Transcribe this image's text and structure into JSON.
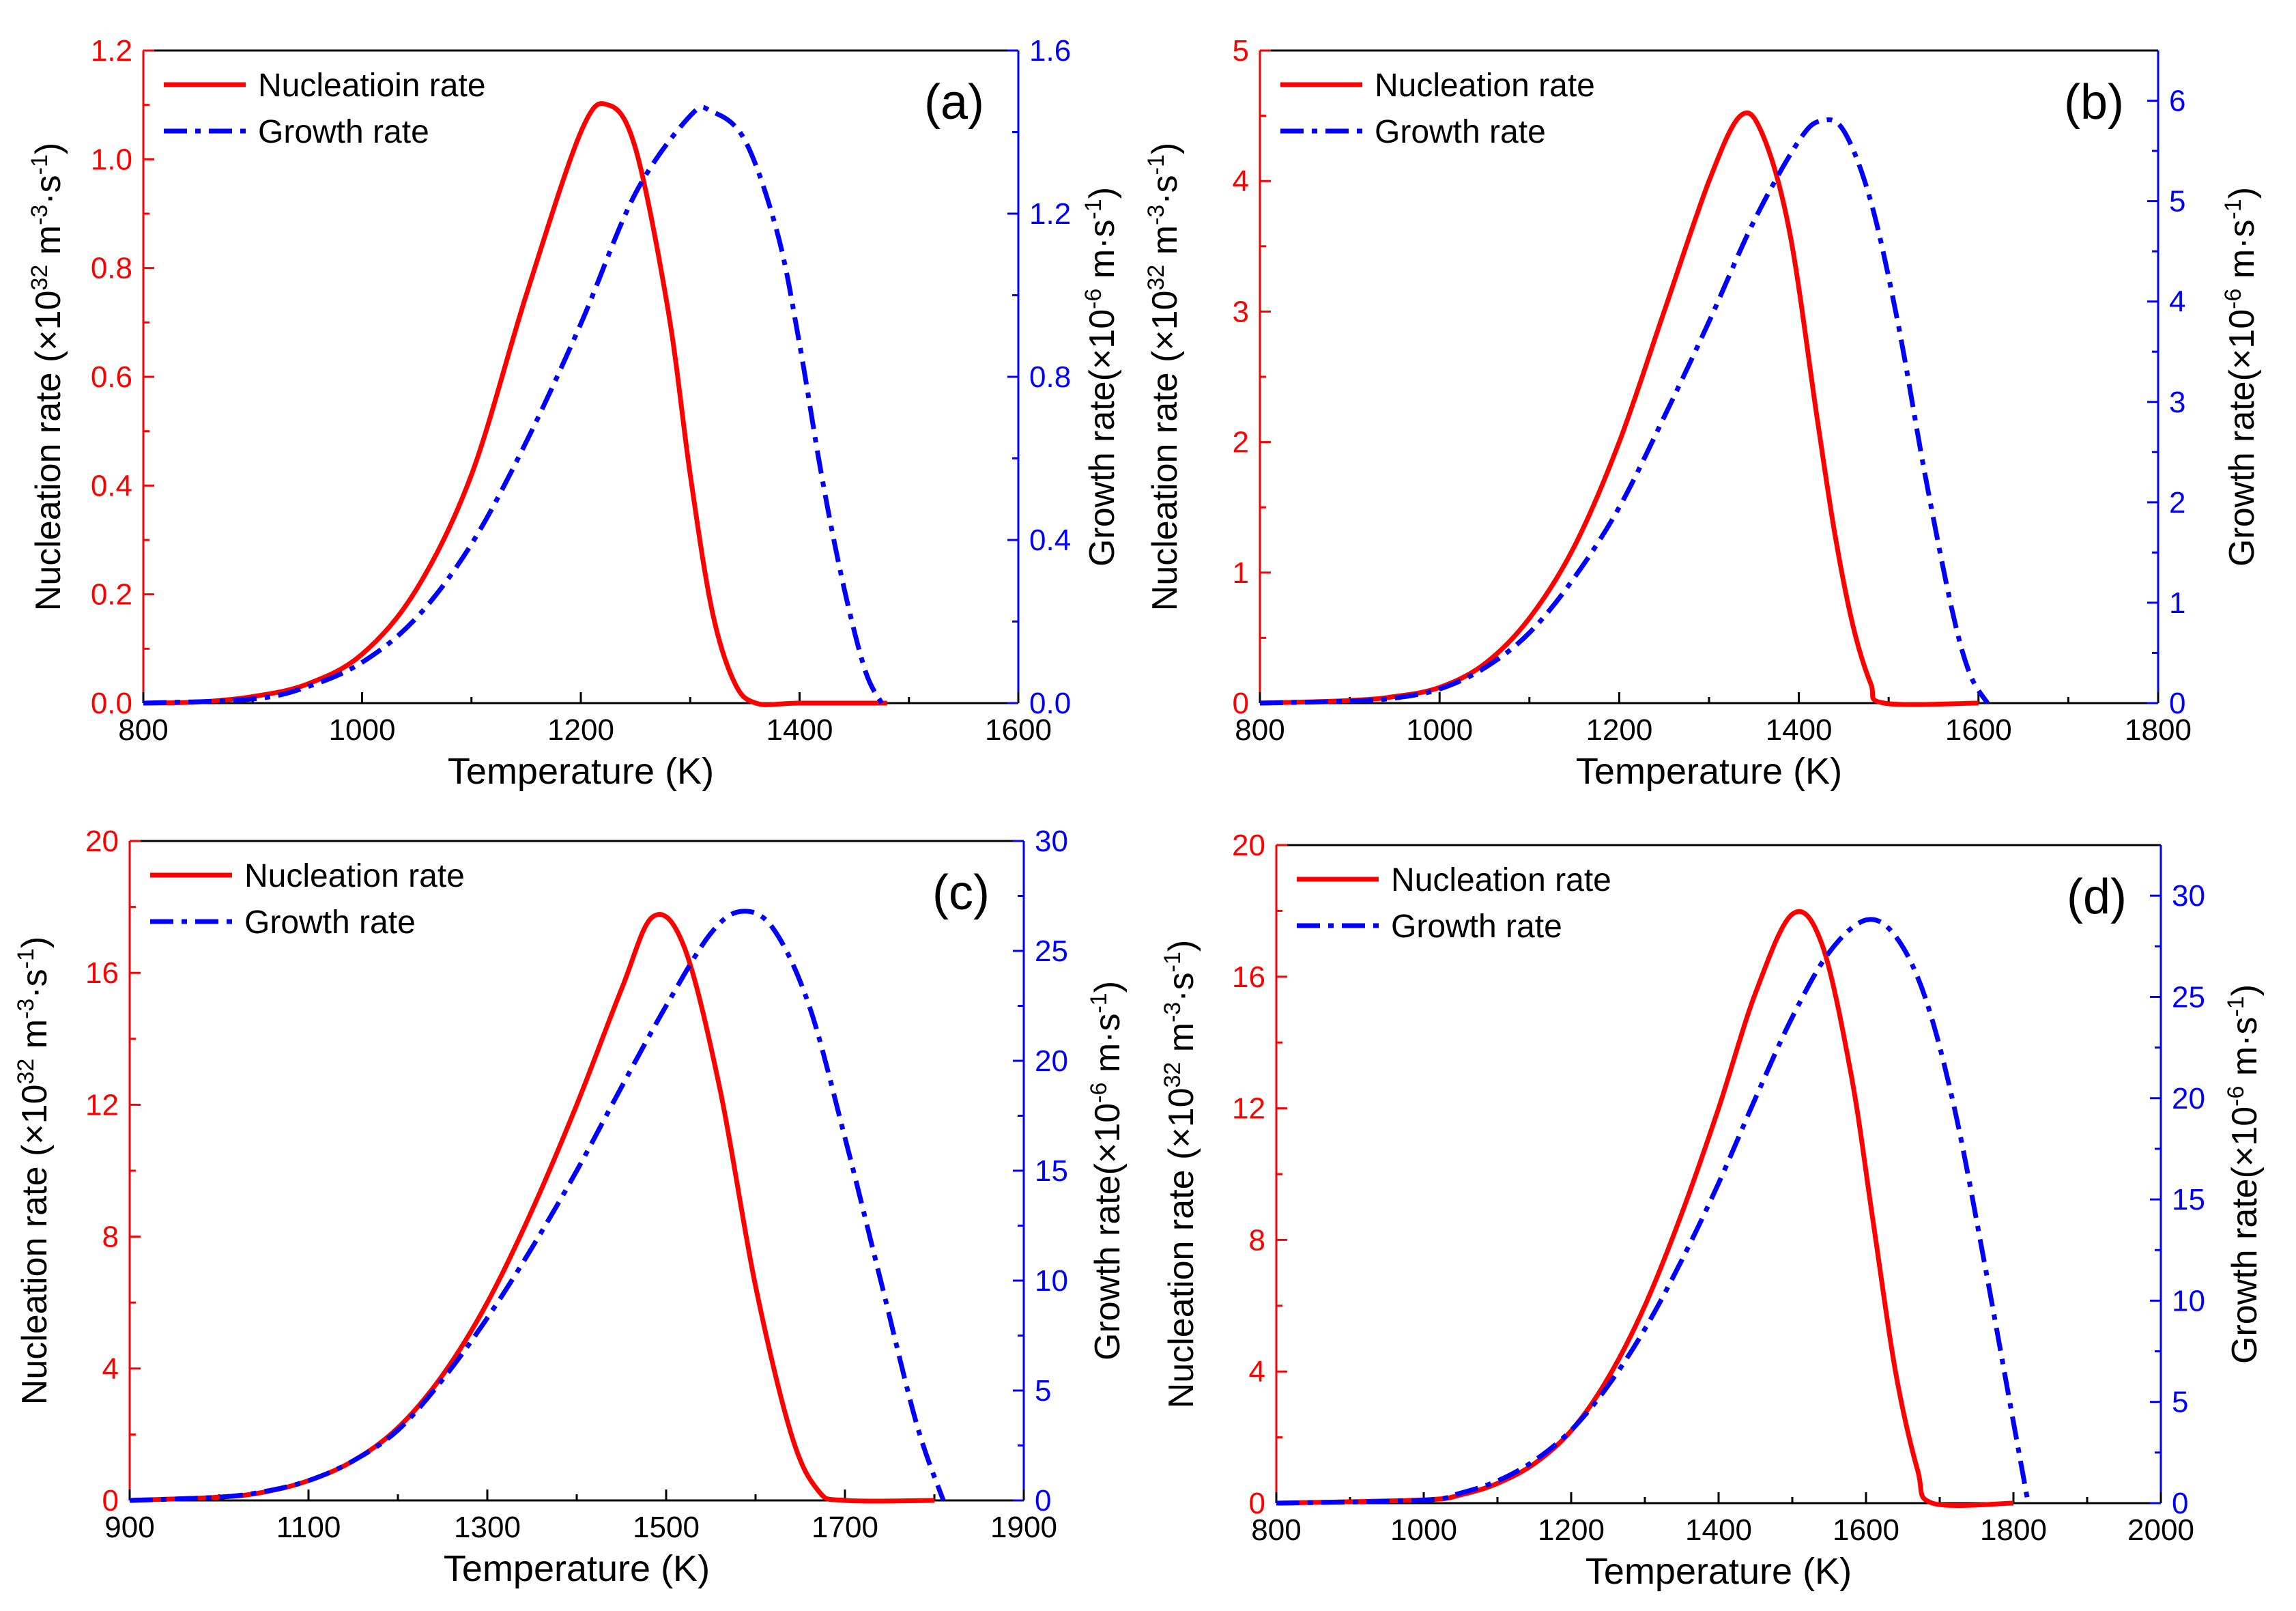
{
  "colors": {
    "nucleation": "#ff0000",
    "growth": "#0000ff",
    "axis": "#000000"
  },
  "chart_data": [
    {
      "type": "line",
      "panel_label": "(a)",
      "xlabel": "Temperature (K)",
      "ylabel_left": {
        "main": "Nucleation rate (×10",
        "sup": "32",
        "mid": " m",
        "sup2": "-3",
        "mid2": "·s",
        "sup3": "-1",
        "end": ")"
      },
      "ylabel_right": {
        "main": "Growth rate(×10",
        "sup": "-6",
        "mid": " m·s",
        "sup2": "-1",
        "end": ")"
      },
      "xlim": [
        800,
        1600
      ],
      "xticks": [
        800,
        1000,
        1200,
        1400,
        1600
      ],
      "xtick_labels": [
        "800",
        "1000",
        "1200",
        "1400",
        "1600"
      ],
      "ylim_left": [
        0,
        1.2
      ],
      "yticks_left": [
        0,
        0.2,
        0.4,
        0.6,
        0.8,
        1.0,
        1.2
      ],
      "ytick_labels_left": [
        "0.0",
        "0.2",
        "0.4",
        "0.6",
        "0.8",
        "1.0",
        "1.2"
      ],
      "ylim_right": [
        0,
        1.6
      ],
      "yticks_right": [
        0,
        0.4,
        0.8,
        1.2,
        1.6
      ],
      "ytick_labels_right": [
        "0.0",
        "0.4",
        "0.8",
        "1.2",
        "1.6"
      ],
      "legend": [
        "Nucleatioin rate",
        "Growth rate"
      ],
      "legend_position": "top-left",
      "series": [
        {
          "name": "Nucleatioin rate",
          "axis": "left",
          "x": [
            800,
            850,
            900,
            950,
            1000,
            1050,
            1100,
            1150,
            1200,
            1225,
            1250,
            1280,
            1300,
            1320,
            1340,
            1360,
            1400,
            1480
          ],
          "y": [
            0.0,
            0.002,
            0.012,
            0.035,
            0.09,
            0.21,
            0.42,
            0.75,
            1.05,
            1.1,
            1.02,
            0.72,
            0.42,
            0.17,
            0.04,
            0.0,
            0.0,
            0.0
          ]
        },
        {
          "name": "Growth rate",
          "axis": "right",
          "x": [
            800,
            900,
            950,
            1000,
            1050,
            1100,
            1150,
            1200,
            1250,
            1300,
            1320,
            1350,
            1380,
            1400,
            1420,
            1440,
            1460,
            1475
          ],
          "y": [
            0.0,
            0.01,
            0.04,
            0.1,
            0.21,
            0.39,
            0.64,
            0.93,
            1.25,
            1.44,
            1.45,
            1.38,
            1.15,
            0.88,
            0.56,
            0.29,
            0.08,
            0.0
          ]
        }
      ]
    },
    {
      "type": "line",
      "panel_label": "(b)",
      "xlabel": "Temperature (K)",
      "ylabel_left": {
        "main": "Nucleation rate (×10",
        "sup": "32",
        "mid": " m",
        "sup2": "-3",
        "mid2": "·s",
        "sup3": "-1",
        "end": ")"
      },
      "ylabel_right": {
        "main": "Growth rate(×10",
        "sup": "-6",
        "mid": " m·s",
        "sup2": "-1",
        "end": ")"
      },
      "xlim": [
        800,
        1800
      ],
      "xticks": [
        800,
        1000,
        1200,
        1400,
        1600,
        1800
      ],
      "xtick_labels": [
        "800",
        "1000",
        "1200",
        "1400",
        "1600",
        "1800"
      ],
      "ylim_left": [
        0,
        5
      ],
      "yticks_left": [
        0,
        1,
        2,
        3,
        4,
        5
      ],
      "ytick_labels_left": [
        "0",
        "1",
        "2",
        "3",
        "4",
        "5"
      ],
      "ylim_right": [
        0,
        6.5
      ],
      "yticks_right": [
        0,
        1,
        2,
        3,
        4,
        5,
        6
      ],
      "ytick_labels_right": [
        "0",
        "1",
        "2",
        "3",
        "4",
        "5",
        "6"
      ],
      "legend": [
        "Nucleation rate",
        "Growth rate"
      ],
      "legend_position": "top-left",
      "series": [
        {
          "name": "Nucleation rate",
          "axis": "left",
          "x": [
            800,
            900,
            950,
            1000,
            1050,
            1100,
            1150,
            1200,
            1250,
            1300,
            1335,
            1360,
            1390,
            1420,
            1440,
            1460,
            1480,
            1495,
            1600
          ],
          "y": [
            0.0,
            0.02,
            0.05,
            0.12,
            0.3,
            0.65,
            1.2,
            2.0,
            3.0,
            4.0,
            4.5,
            4.35,
            3.6,
            2.2,
            1.3,
            0.6,
            0.15,
            0.0,
            0.0
          ]
        },
        {
          "name": "Growth rate",
          "axis": "right",
          "x": [
            800,
            900,
            950,
            1000,
            1050,
            1100,
            1150,
            1200,
            1250,
            1300,
            1350,
            1400,
            1425,
            1450,
            1480,
            1510,
            1540,
            1570,
            1590,
            1610
          ],
          "y": [
            0.0,
            0.02,
            0.05,
            0.14,
            0.35,
            0.7,
            1.25,
            1.95,
            2.85,
            3.8,
            4.8,
            5.6,
            5.8,
            5.7,
            5.0,
            3.8,
            2.3,
            0.95,
            0.3,
            0.0
          ]
        }
      ]
    },
    {
      "type": "line",
      "panel_label": "(c)",
      "xlabel": "Temperature (K)",
      "ylabel_left": {
        "main": "Nucleation rate (×10",
        "sup": "32",
        "mid": " m",
        "sup2": "-3",
        "mid2": "·s",
        "sup3": "-1",
        "end": ")"
      },
      "ylabel_right": {
        "main": "Growth rate(×10",
        "sup": "-6",
        "mid": " m·s",
        "sup2": "-1",
        "end": ")"
      },
      "xlim": [
        900,
        1900
      ],
      "xticks": [
        900,
        1100,
        1300,
        1500,
        1700,
        1900
      ],
      "xtick_labels": [
        "900",
        "1100",
        "1300",
        "1500",
        "1700",
        "1900"
      ],
      "ylim_left": [
        0,
        20
      ],
      "yticks_left": [
        0,
        4,
        8,
        12,
        16,
        20
      ],
      "ytick_labels_left": [
        "0",
        "4",
        "8",
        "12",
        "16",
        "20"
      ],
      "ylim_right": [
        0,
        30
      ],
      "yticks_right": [
        0,
        5,
        10,
        15,
        20,
        25,
        30
      ],
      "ytick_labels_right": [
        "0",
        "5",
        "10",
        "15",
        "20",
        "25",
        "30"
      ],
      "legend": [
        "Nucleation rate",
        "Growth rate"
      ],
      "legend_position": "top-left",
      "series": [
        {
          "name": "Nucleation rate",
          "axis": "left",
          "x": [
            900,
            1000,
            1050,
            1100,
            1150,
            1200,
            1250,
            1300,
            1350,
            1400,
            1450,
            1485,
            1520,
            1560,
            1600,
            1640,
            1670,
            1700,
            1800
          ],
          "y": [
            0.0,
            0.1,
            0.25,
            0.6,
            1.2,
            2.2,
            3.8,
            6.0,
            8.8,
            12.0,
            15.5,
            17.7,
            16.8,
            12.5,
            6.5,
            2.0,
            0.3,
            0.0,
            0.0
          ]
        },
        {
          "name": "Growth rate",
          "axis": "right",
          "x": [
            900,
            1000,
            1050,
            1100,
            1150,
            1200,
            1250,
            1300,
            1350,
            1400,
            1450,
            1500,
            1550,
            1585,
            1620,
            1660,
            1700,
            1740,
            1780,
            1810
          ],
          "y": [
            0.0,
            0.15,
            0.4,
            0.9,
            1.8,
            3.2,
            5.5,
            8.3,
            11.5,
            15.0,
            18.8,
            22.5,
            25.8,
            26.8,
            26.0,
            22.5,
            16.5,
            10.0,
            3.5,
            0.0
          ]
        }
      ]
    },
    {
      "type": "line",
      "panel_label": "(d)",
      "xlabel": "Temperature (K)",
      "ylabel_left": {
        "main": "Nucleation rate (×10",
        "sup": "32",
        "mid": " m",
        "sup2": "-3",
        "mid2": "·s",
        "sup3": "-1",
        "end": ")"
      },
      "ylabel_right": {
        "main": "Growth rate(×10",
        "sup": "-6",
        "mid": " m·s",
        "sup2": "-1",
        "end": ")"
      },
      "xlim": [
        800,
        2000
      ],
      "xticks": [
        800,
        1000,
        1200,
        1400,
        1600,
        1800,
        2000
      ],
      "xtick_labels": [
        "800",
        "1000",
        "1200",
        "1400",
        "1600",
        "1800",
        "2000"
      ],
      "ylim_left": [
        0,
        20
      ],
      "yticks_left": [
        0,
        4,
        8,
        12,
        16,
        20
      ],
      "ytick_labels_left": [
        "0",
        "4",
        "8",
        "12",
        "16",
        "20"
      ],
      "ylim_right": [
        0,
        32.5
      ],
      "yticks_right": [
        0,
        5,
        10,
        15,
        20,
        25,
        30
      ],
      "ytick_labels_right": [
        "0",
        "5",
        "10",
        "15",
        "20",
        "25",
        "30"
      ],
      "legend": [
        "Nucleation rate",
        "Growth rate"
      ],
      "legend_position": "top-left",
      "series": [
        {
          "name": "Nucleation rate",
          "axis": "left",
          "x": [
            800,
            1000,
            1050,
            1100,
            1150,
            1200,
            1250,
            1300,
            1350,
            1400,
            1450,
            1500,
            1540,
            1580,
            1610,
            1640,
            1670,
            1690,
            1800
          ],
          "y": [
            0.0,
            0.1,
            0.25,
            0.6,
            1.2,
            2.2,
            3.8,
            6.0,
            8.8,
            12.0,
            15.5,
            17.9,
            17.0,
            13.0,
            8.5,
            4.0,
            1.0,
            0.0,
            0.0
          ]
        },
        {
          "name": "Growth rate",
          "axis": "right",
          "x": [
            800,
            1000,
            1050,
            1100,
            1150,
            1200,
            1250,
            1300,
            1350,
            1400,
            1450,
            1500,
            1550,
            1600,
            1640,
            1680,
            1720,
            1760,
            1800,
            1820
          ],
          "y": [
            0.0,
            0.15,
            0.5,
            1.1,
            2.1,
            3.6,
            5.8,
            8.6,
            12.0,
            15.8,
            20.0,
            24.0,
            27.2,
            28.8,
            28.0,
            25.0,
            19.5,
            12.0,
            4.0,
            0.0
          ]
        }
      ]
    }
  ]
}
